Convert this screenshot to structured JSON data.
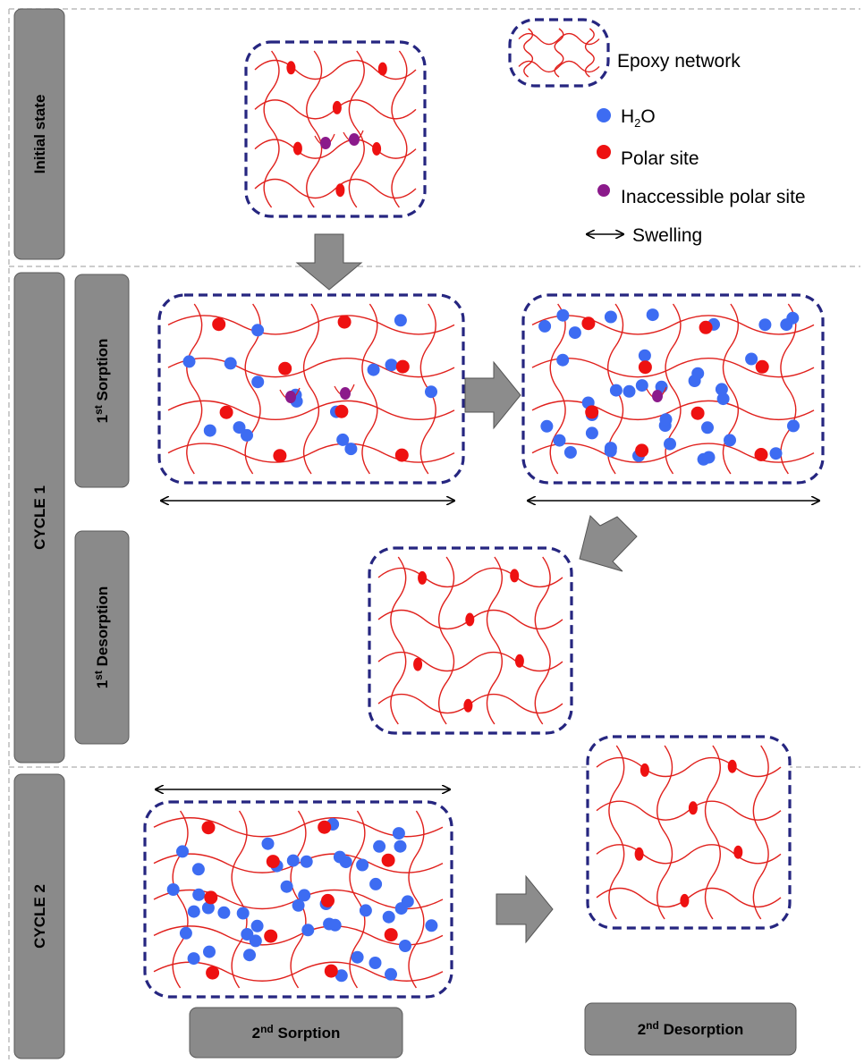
{
  "colors": {
    "chain": "#e0201c",
    "polar_site": "#ee1111",
    "water": "#3d6cf2",
    "inaccessible": "#8b1a8b",
    "box_border": "#262680",
    "tab_fill": "#8a8a8a",
    "arrow_fill": "#8c8c8c",
    "section_line": "#bbbbbb"
  },
  "labels": {
    "initial_state": "Initial state",
    "cycle1": "CYCLE 1",
    "cycle2": "CYCLE 2",
    "sorption1": {
      "ordinal": "1",
      "suffix": "st",
      "word": " Sorption"
    },
    "desorption1": {
      "ordinal": "1",
      "suffix": "st",
      "word": " Desorption"
    },
    "sorption2": {
      "ordinal": "2",
      "suffix": "nd",
      "word": " Sorption"
    },
    "desorption2": {
      "ordinal": "2",
      "suffix": "nd",
      "word": " Desorption"
    }
  },
  "legend": {
    "epoxy_network": "Epoxy network",
    "water": {
      "base": "H",
      "subscript": "2",
      "tail": "O"
    },
    "polar_site": "Polar site",
    "inaccessible_polar_site": "Inaccessible polar site",
    "swelling": "Swelling"
  },
  "icons": {
    "stage_arrow": "gray-block-arrow",
    "swelling_arrow": "double-headed-arrow",
    "water_marker": "blue-dot",
    "polar_marker": "red-dot",
    "inaccessible_marker": "purple-dot"
  }
}
